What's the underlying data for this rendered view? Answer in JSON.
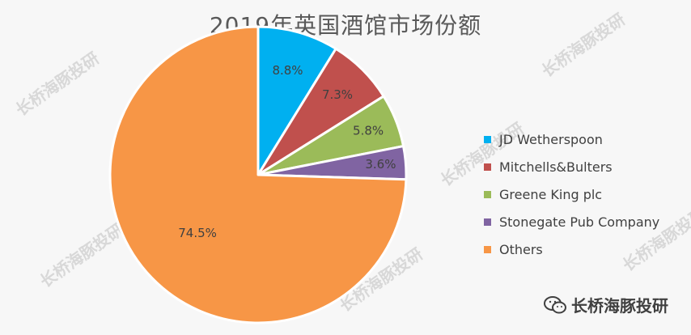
{
  "chart_data": {
    "type": "pie",
    "title": "2019年英国酒馆市场份额",
    "slices": [
      {
        "label": "JD Wetherspoon",
        "value": 8.8,
        "display": "8.8%",
        "color": "#00b0f0"
      },
      {
        "label": "Mitchells&Bulters",
        "value": 7.3,
        "display": "7.3%",
        "color": "#c0504d"
      },
      {
        "label": "Greene King plc",
        "value": 5.8,
        "display": "5.8%",
        "color": "#9bbb59"
      },
      {
        "label": "Stonegate Pub Company",
        "value": 3.6,
        "display": "3.6%",
        "color": "#8064a2"
      },
      {
        "label": "Others",
        "value": 74.5,
        "display": "74.5%",
        "color": "#f79646"
      }
    ],
    "start_angle_deg": 0,
    "direction": "clockwise",
    "legend_position": "right"
  },
  "watermark": {
    "text": "长桥海豚投研"
  },
  "brand": {
    "text": "长桥海豚投研",
    "icon": "wechat-icon"
  }
}
